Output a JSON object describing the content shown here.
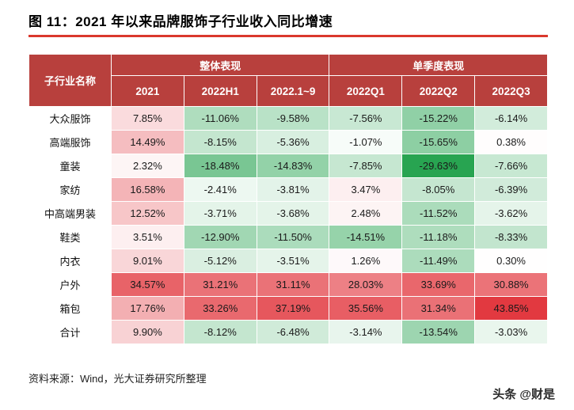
{
  "title": "图 11：2021 年以来品牌服饰子行业收入同比增速",
  "source_note": "资料来源：Wind，光大证券研究所整理",
  "watermark": "头条 @财是",
  "chart_data": {
    "type": "table",
    "subtype": "heatmap",
    "title": "图 11：2021 年以来品牌服饰子行业收入同比增速",
    "corner_header": "子行业名称",
    "group_headers": [
      "整体表现",
      "单季度表现"
    ],
    "columns": [
      "2021",
      "2022H1",
      "2022.1~9",
      "2022Q1",
      "2022Q2",
      "2022Q3"
    ],
    "unit": "%",
    "rows": [
      {
        "name": "大众服饰",
        "values": [
          7.85,
          -11.06,
          -9.58,
          -7.56,
          -15.22,
          -6.14
        ]
      },
      {
        "name": "高端服饰",
        "values": [
          14.49,
          -8.15,
          -5.36,
          -1.07,
          -15.65,
          0.38
        ]
      },
      {
        "name": "童装",
        "values": [
          2.32,
          -18.48,
          -14.83,
          -7.85,
          -29.63,
          -7.66
        ]
      },
      {
        "name": "家纺",
        "values": [
          16.58,
          -2.41,
          -3.81,
          3.47,
          -8.05,
          -6.39
        ]
      },
      {
        "name": "中高端男装",
        "values": [
          12.52,
          -3.71,
          -3.68,
          2.48,
          -11.52,
          -3.62
        ]
      },
      {
        "name": "鞋类",
        "values": [
          3.51,
          -12.9,
          -11.5,
          -14.51,
          -11.18,
          -8.33
        ]
      },
      {
        "name": "内衣",
        "values": [
          9.01,
          -5.12,
          -3.51,
          1.26,
          -11.49,
          0.3
        ]
      },
      {
        "name": "户外",
        "values": [
          34.57,
          31.21,
          31.11,
          28.03,
          33.69,
          30.88
        ]
      },
      {
        "name": "箱包",
        "values": [
          17.76,
          33.26,
          37.19,
          35.56,
          31.34,
          43.85
        ]
      },
      {
        "name": "合计",
        "values": [
          9.9,
          -8.12,
          -6.48,
          -3.14,
          -13.54,
          -3.03
        ]
      }
    ]
  },
  "colors": {
    "title_text": "#000000",
    "accent_line": "#da382c",
    "header_bg": "#b8403d",
    "header_text": "#ffffff",
    "cell_text": "#1a1a1a",
    "heat_positive_max": "#e2383f",
    "heat_negative_max": "#25a34f",
    "heat_neutral": "#ffffff"
  },
  "heatmap": {
    "positive_scale": 44,
    "negative_scale": 30
  }
}
